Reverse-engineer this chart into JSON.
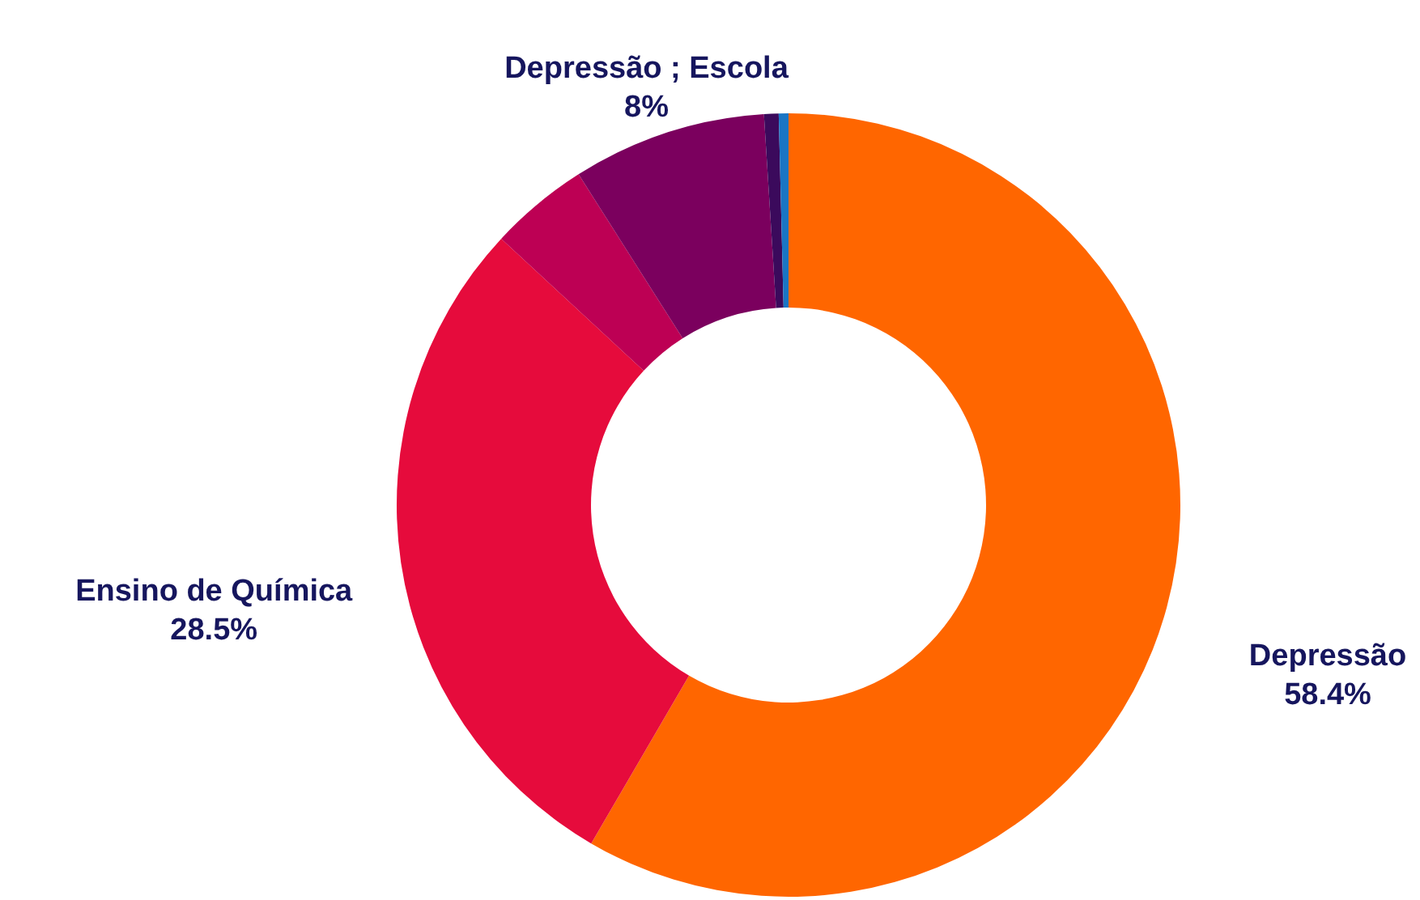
{
  "chart_data": {
    "type": "donut",
    "categories": [
      "Depressão",
      "Ensino de Química",
      null,
      "Depressão ; Escola",
      null,
      null
    ],
    "values": [
      58.4,
      28.5,
      4.1,
      8,
      0.6,
      0.4
    ],
    "colors": [
      "#ff6600",
      "#e60b3c",
      "#bd0054",
      "#7b005e",
      "#3b0a5c",
      "#1a75c4"
    ],
    "value_labels": [
      "58.4%",
      "28.5%",
      null,
      "8%",
      null,
      null
    ]
  }
}
